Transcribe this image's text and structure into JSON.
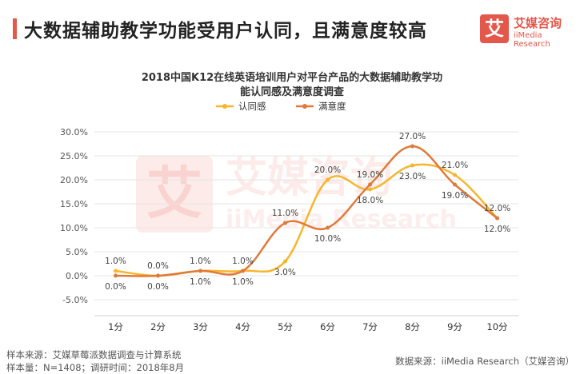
{
  "header": {
    "headline": "大数据辅助教学功能受用户认同，且满意度较高",
    "logo_mark": "艾",
    "logo_name": "艾媒咨询",
    "logo_sub": "iiMedia Research"
  },
  "watermark": {
    "cn": "艾媒咨询",
    "en": "iiMedia Research"
  },
  "chart_data": {
    "type": "line",
    "title_line1": "2018中国K12在线英语培训用户对平台产品的大数据辅助教学功",
    "title_line2": "能认同感及满意度调查",
    "categories": [
      "1分",
      "2分",
      "3分",
      "4分",
      "5分",
      "6分",
      "7分",
      "8分",
      "9分",
      "10分"
    ],
    "yticks": [
      "30.0%",
      "25.0%",
      "20.0%",
      "15.0%",
      "10.0%",
      "5.0%",
      "0.0%",
      "-5.0%"
    ],
    "ylim": [
      -5,
      30
    ],
    "legend_position": "top-center",
    "series": [
      {
        "name": "认同感",
        "color": "#f7b52c",
        "values": [
          1,
          0,
          1,
          1,
          3,
          20,
          18,
          23,
          21,
          12
        ],
        "labels": [
          "1.0%",
          "0.0%",
          "1.0%",
          "1.0%",
          "3.0%",
          "20.0%",
          "18.0%",
          "23.0%",
          "21.0%",
          "12.0%"
        ]
      },
      {
        "name": "满意度",
        "color": "#e07a3a",
        "values": [
          0,
          0,
          1,
          1,
          11,
          10,
          19,
          27,
          19,
          12
        ],
        "labels": [
          "0.0%",
          "0.0%",
          "1.0%",
          "1.0%",
          "11.0%",
          "10.0%",
          "19.0%",
          "27.0%",
          "19.0%",
          "12.0%"
        ]
      }
    ]
  },
  "footer": {
    "source_left": "样本来源：艾媒草莓派数据调查与计算系统",
    "sample": "样本量：N=1408；调研时间：2018年8月",
    "source_right": "数据来源：iiMedia Research（艾媒咨询）"
  }
}
